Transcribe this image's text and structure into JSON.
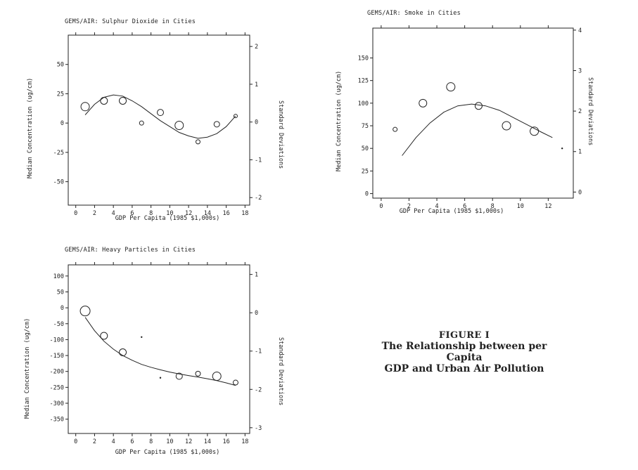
{
  "caption": {
    "figure_label": "FIGURE I",
    "line1": "The Relationship between per Capita",
    "line2": "GDP and Urban Air Pollution"
  },
  "chart_data": [
    {
      "type": "scatter",
      "title": "GEMS/AIR: Sulphur Dioxide in Cities",
      "xlabel": "GDP Per Capita (1985 $1,000s)",
      "ylabel": "Median Concentration (ug/cm)",
      "y2label": "Standard Deviations",
      "xlim": [
        -0.8,
        18.5
      ],
      "ylim": [
        -70,
        75
      ],
      "y2lim": [
        -2.2,
        2.3
      ],
      "xticks": [
        0,
        2,
        4,
        6,
        8,
        10,
        12,
        14,
        16,
        18
      ],
      "yticks": [
        -50,
        -25,
        0,
        25,
        50
      ],
      "y2ticks": [
        -2,
        -1,
        0,
        1,
        2
      ],
      "series": [
        {
          "kind": "points",
          "x": [
            1,
            3,
            5,
            7,
            9,
            11,
            13,
            15,
            17
          ],
          "y": [
            14,
            19,
            19,
            0,
            9,
            -2,
            -16,
            -1,
            6
          ],
          "size": [
            6,
            5,
            5,
            3,
            4.5,
            6,
            3,
            4,
            2.5
          ]
        },
        {
          "kind": "fit",
          "x": [
            1,
            2,
            3,
            4,
            5,
            6,
            7,
            8,
            9,
            10,
            11,
            12,
            13,
            14,
            15,
            16,
            17
          ],
          "y": [
            7,
            16,
            22,
            24,
            23,
            19,
            14,
            8,
            2,
            -3,
            -8,
            -11,
            -13,
            -12,
            -9,
            -3,
            6
          ]
        }
      ]
    },
    {
      "type": "scatter",
      "title": "GEMS/AIR: Smoke in Cities",
      "xlabel": "GDP Per Capita (1985 $1,000s)",
      "ylabel": "Median Concentration (ug/cm)",
      "y2label": "Standard Deviations",
      "xlim": [
        -0.6,
        13.8
      ],
      "ylim": [
        -5,
        183
      ],
      "y2lim": [
        -0.15,
        4.05
      ],
      "xticks": [
        0,
        2,
        4,
        6,
        8,
        10,
        12
      ],
      "yticks": [
        0,
        25,
        50,
        75,
        100,
        125,
        150
      ],
      "y2ticks": [
        0,
        1,
        2,
        3,
        4
      ],
      "series": [
        {
          "kind": "points",
          "x": [
            1,
            3,
            5,
            7,
            9,
            11,
            13
          ],
          "y": [
            71,
            100,
            118,
            97,
            75,
            69,
            50
          ],
          "size": [
            3,
            5.5,
            6,
            5,
            6,
            6,
            1.2
          ]
        },
        {
          "kind": "fit",
          "x": [
            1.5,
            2.5,
            3.5,
            4.5,
            5.5,
            6.5,
            7.5,
            8.5,
            9.5,
            10.5,
            11.5,
            12.3
          ],
          "y": [
            42,
            62,
            78,
            90,
            97,
            99,
            97,
            92,
            84,
            76,
            68,
            62
          ]
        }
      ]
    },
    {
      "type": "scatter",
      "title": "GEMS/AIR: Heavy Particles in Cities",
      "xlabel": "GDP Per Capita (1985 $1,000s)",
      "ylabel": "Median Concentration (ug/cm)",
      "y2label": "Standard Deviations",
      "xlim": [
        -0.8,
        18.5
      ],
      "ylim": [
        -395,
        135
      ],
      "y2lim": [
        -3.15,
        1.25
      ],
      "xticks": [
        0,
        2,
        4,
        6,
        8,
        10,
        12,
        14,
        16,
        18
      ],
      "yticks": [
        100,
        50,
        0,
        -50,
        -100,
        -150,
        -200,
        -250,
        -300,
        -350
      ],
      "y2ticks": [
        1,
        0,
        -1,
        -2,
        -3
      ],
      "series": [
        {
          "kind": "points",
          "x": [
            1,
            3,
            5,
            7,
            9,
            11,
            13,
            15,
            17
          ],
          "y": [
            -10,
            -88,
            -140,
            -92,
            -220,
            -215,
            -207,
            -215,
            -235
          ],
          "size": [
            7,
            5,
            5,
            1.2,
            1.2,
            4.5,
            3.5,
            6,
            3.5
          ]
        },
        {
          "kind": "fit",
          "x": [
            1,
            2,
            3,
            4,
            5,
            6,
            7,
            8,
            9,
            10,
            11,
            12,
            13,
            14,
            15,
            16,
            17
          ],
          "y": [
            -30,
            -72,
            -105,
            -130,
            -150,
            -165,
            -178,
            -187,
            -195,
            -202,
            -208,
            -213,
            -218,
            -223,
            -229,
            -236,
            -244
          ]
        }
      ]
    }
  ]
}
